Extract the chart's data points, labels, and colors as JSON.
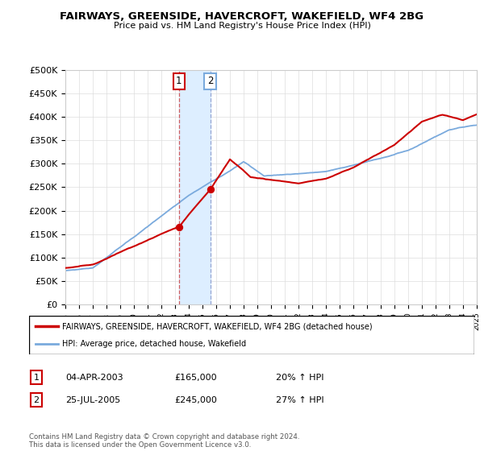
{
  "title": "FAIRWAYS, GREENSIDE, HAVERCROFT, WAKEFIELD, WF4 2BG",
  "subtitle": "Price paid vs. HM Land Registry's House Price Index (HPI)",
  "ylim": [
    0,
    500000
  ],
  "yticks": [
    0,
    50000,
    100000,
    150000,
    200000,
    250000,
    300000,
    350000,
    400000,
    450000,
    500000
  ],
  "ytick_labels": [
    "£0",
    "£50K",
    "£100K",
    "£150K",
    "£200K",
    "£250K",
    "£300K",
    "£350K",
    "£400K",
    "£450K",
    "£500K"
  ],
  "sale1_year": 2003.27,
  "sale1_price": 165000,
  "sale2_year": 2005.56,
  "sale2_price": 245000,
  "sale1_date": "04-APR-2003",
  "sale1_amount": "£165,000",
  "sale1_hpi": "20% ↑ HPI",
  "sale2_date": "25-JUL-2005",
  "sale2_amount": "£245,000",
  "sale2_hpi": "27% ↑ HPI",
  "red_color": "#cc0000",
  "blue_color": "#7aaadd",
  "vline1_color": "#cc4444",
  "vline2_color": "#8899cc",
  "span_color": "#ddeeff",
  "legend_label1": "FAIRWAYS, GREENSIDE, HAVERCROFT, WAKEFIELD, WF4 2BG (detached house)",
  "legend_label2": "HPI: Average price, detached house, Wakefield",
  "footnote": "Contains HM Land Registry data © Crown copyright and database right 2024.\nThis data is licensed under the Open Government Licence v3.0.",
  "grid_color": "#dddddd",
  "xlim_start": 1995,
  "xlim_end": 2025
}
